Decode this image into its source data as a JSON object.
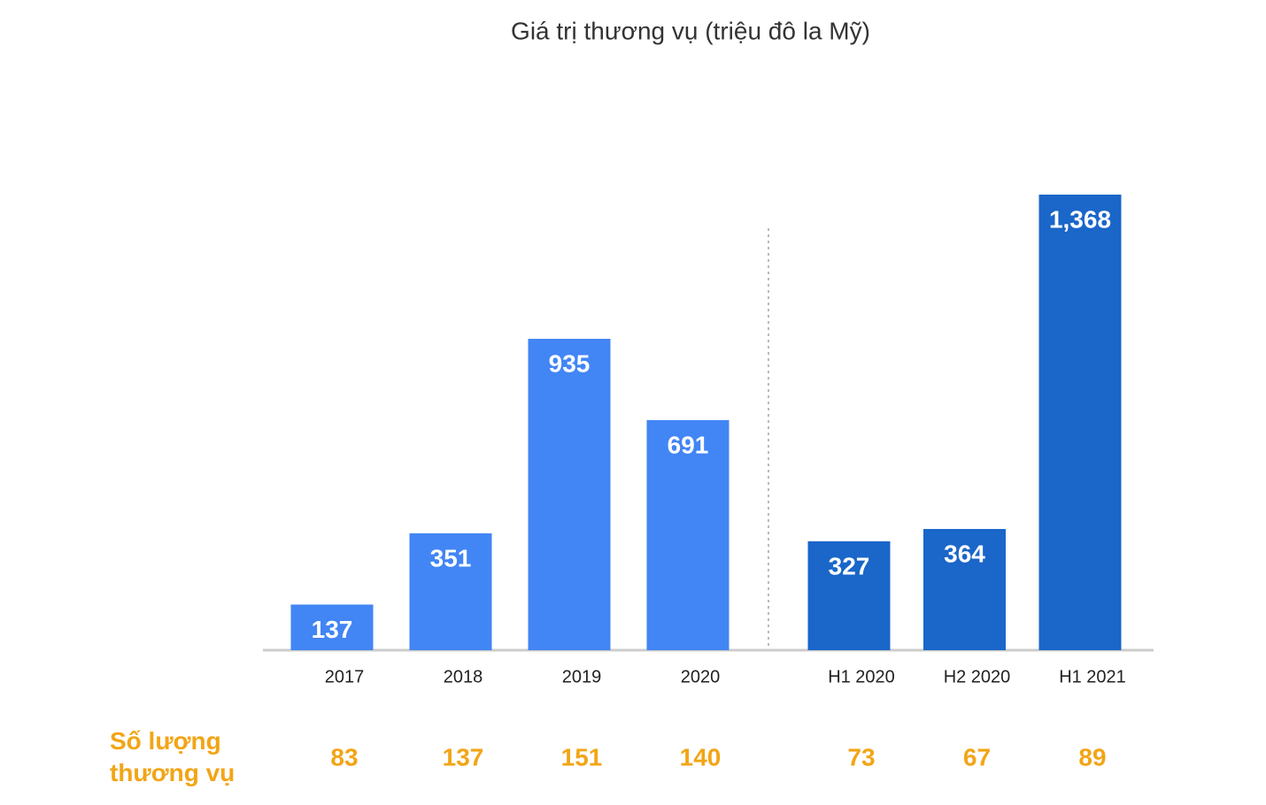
{
  "chart_data": {
    "type": "bar",
    "title": "Giá trị thương vụ (triệu đô la Mỹ)",
    "categories": [
      "2017",
      "2018",
      "2019",
      "2020",
      "H1 2020",
      "H2 2020",
      "H1 2021"
    ],
    "values": [
      137,
      351,
      935,
      691,
      327,
      364,
      1368
    ],
    "value_labels": [
      "137",
      "351",
      "935",
      "691",
      "327",
      "364",
      "1,368"
    ],
    "colors": [
      "#4285f4",
      "#4285f4",
      "#4285f4",
      "#4285f4",
      "#1a66c9",
      "#1a66c9",
      "#1a66c9"
    ],
    "deal_counts": {
      "label": "Số lượng thương vụ",
      "values": [
        83,
        137,
        151,
        140,
        73,
        67,
        89
      ],
      "color": "#f2a516"
    }
  }
}
